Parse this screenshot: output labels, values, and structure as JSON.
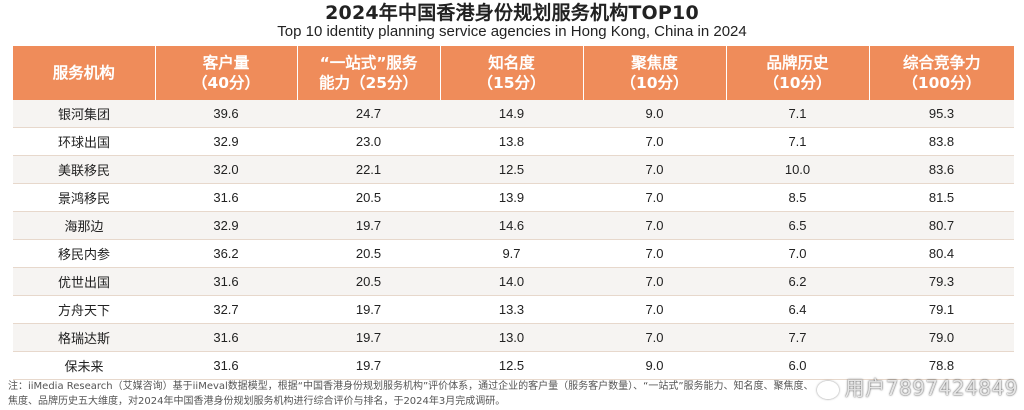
{
  "title": "2024年中国香港身份规划服务机构TOP10",
  "subtitle": "Top 10 identity planning service agencies in Hong Kong, China in 2024",
  "table": {
    "headers": [
      {
        "line1": "服务机构",
        "line2": ""
      },
      {
        "line1": "客户量",
        "line2": "（40分）"
      },
      {
        "line1": "“一站式”服务",
        "line2": "能力（25分）"
      },
      {
        "line1": "知名度",
        "line2": "（15分）"
      },
      {
        "line1": "聚焦度",
        "line2": "（10分）"
      },
      {
        "line1": "品牌历史",
        "line2": "（10分）"
      },
      {
        "line1": "综合竞争力",
        "line2": "（100分）"
      }
    ],
    "rows": [
      [
        "银河集团",
        "39.6",
        "24.7",
        "14.9",
        "9.0",
        "7.1",
        "95.3"
      ],
      [
        "环球出国",
        "32.9",
        "23.0",
        "13.8",
        "7.0",
        "7.1",
        "83.8"
      ],
      [
        "美联移民",
        "32.0",
        "22.1",
        "12.5",
        "7.0",
        "10.0",
        "83.6"
      ],
      [
        "景鸿移民",
        "31.6",
        "20.5",
        "13.9",
        "7.0",
        "8.5",
        "81.5"
      ],
      [
        "海那边",
        "32.9",
        "19.7",
        "14.6",
        "7.0",
        "6.5",
        "80.7"
      ],
      [
        "移民内参",
        "36.2",
        "20.5",
        "9.7",
        "7.0",
        "7.0",
        "80.4"
      ],
      [
        "优世出国",
        "31.6",
        "20.5",
        "14.0",
        "7.0",
        "6.2",
        "79.3"
      ],
      [
        "方舟天下",
        "32.7",
        "19.7",
        "13.3",
        "7.0",
        "6.4",
        "79.1"
      ],
      [
        "格瑞达斯",
        "31.6",
        "19.7",
        "13.0",
        "7.0",
        "7.7",
        "79.0"
      ],
      [
        "保未来",
        "31.6",
        "19.7",
        "12.5",
        "9.0",
        "6.0",
        "78.8"
      ]
    ]
  },
  "note_line1": "注：iiMedia Research（艾媒咨询）基于iiMeval数据模型，根据“中国香港身份规划服务机构”评价体系，通过企业的客户量（服务客户数量）、“一站式”服务能力、知名度、聚焦度、",
  "note_line2": "焦度、品牌历史五大维度，对2024年中国香港身份规划服务机构进行综合评价与排名，于2024年3月完成调研。",
  "watermark": "用户7897424849",
  "colors": {
    "header_bg": "#ef8c5a",
    "row_alt": "#f6f4f2"
  }
}
